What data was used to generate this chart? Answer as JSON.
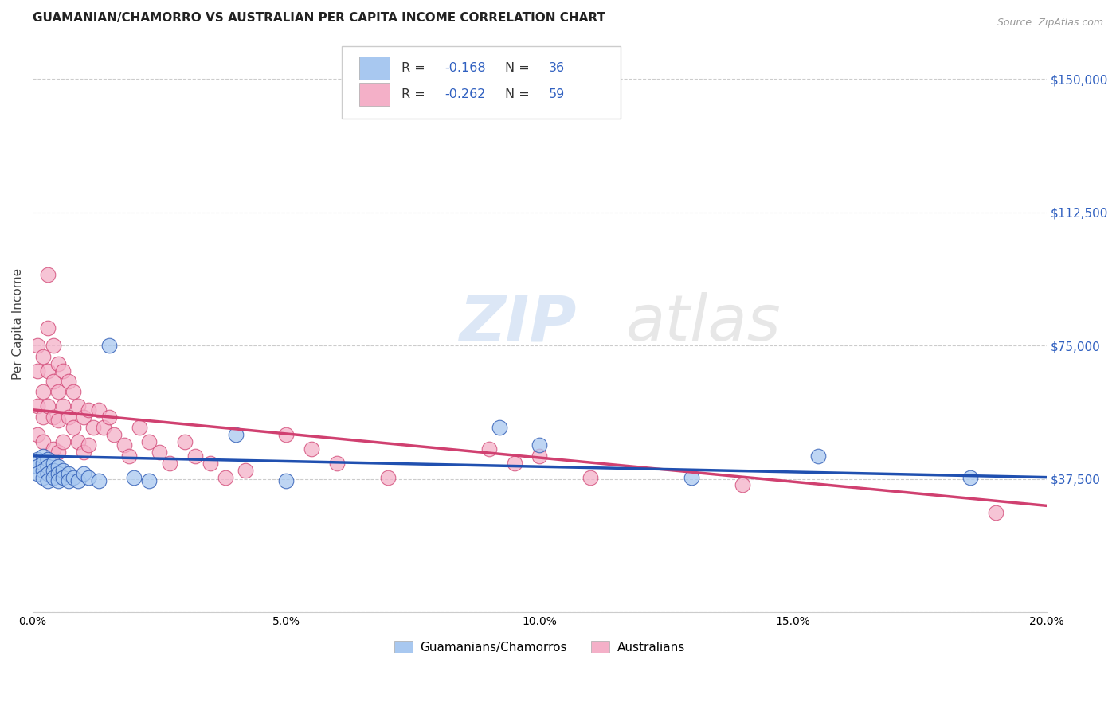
{
  "title": "GUAMANIAN/CHAMORRO VS AUSTRALIAN PER CAPITA INCOME CORRELATION CHART",
  "source": "Source: ZipAtlas.com",
  "ylabel": "Per Capita Income",
  "watermark": "ZIPatlas",
  "yticks": [
    0,
    37500,
    75000,
    112500,
    150000
  ],
  "ytick_labels": [
    "",
    "$37,500",
    "$75,000",
    "$112,500",
    "$150,000"
  ],
  "xlim": [
    0.0,
    0.2
  ],
  "ylim": [
    15000,
    162500
  ],
  "blue_R": "-0.168",
  "blue_N": "36",
  "pink_R": "-0.262",
  "pink_N": "59",
  "legend_label_blue": "Guamanians/Chamorros",
  "legend_label_pink": "Australians",
  "blue_color": "#a8c8f0",
  "pink_color": "#f4b0c8",
  "blue_line_color": "#2050b0",
  "pink_line_color": "#d04070",
  "background_color": "#ffffff",
  "grid_color": "#cccccc",
  "title_fontsize": 11,
  "axis_label_fontsize": 10,
  "tick_fontsize": 10,
  "source_fontsize": 9,
  "blue_scatter_x": [
    0.001,
    0.001,
    0.001,
    0.002,
    0.002,
    0.002,
    0.002,
    0.003,
    0.003,
    0.003,
    0.003,
    0.004,
    0.004,
    0.004,
    0.005,
    0.005,
    0.005,
    0.006,
    0.006,
    0.007,
    0.007,
    0.008,
    0.009,
    0.01,
    0.011,
    0.013,
    0.015,
    0.02,
    0.023,
    0.04,
    0.05,
    0.092,
    0.1,
    0.13,
    0.155,
    0.185
  ],
  "blue_scatter_y": [
    43000,
    41000,
    39000,
    44000,
    42000,
    40000,
    38000,
    43000,
    41000,
    39000,
    37000,
    42000,
    40000,
    38000,
    41000,
    39000,
    37000,
    40000,
    38000,
    39000,
    37000,
    38000,
    37000,
    39000,
    38000,
    37000,
    75000,
    38000,
    37000,
    50000,
    37000,
    52000,
    47000,
    38000,
    44000,
    38000
  ],
  "pink_scatter_x": [
    0.001,
    0.001,
    0.001,
    0.001,
    0.002,
    0.002,
    0.002,
    0.002,
    0.003,
    0.003,
    0.003,
    0.003,
    0.004,
    0.004,
    0.004,
    0.004,
    0.005,
    0.005,
    0.005,
    0.005,
    0.006,
    0.006,
    0.006,
    0.007,
    0.007,
    0.008,
    0.008,
    0.009,
    0.009,
    0.01,
    0.01,
    0.011,
    0.011,
    0.012,
    0.013,
    0.014,
    0.015,
    0.016,
    0.018,
    0.019,
    0.021,
    0.023,
    0.025,
    0.027,
    0.03,
    0.032,
    0.035,
    0.038,
    0.042,
    0.05,
    0.055,
    0.06,
    0.07,
    0.09,
    0.095,
    0.1,
    0.11,
    0.14,
    0.19
  ],
  "pink_scatter_y": [
    75000,
    68000,
    58000,
    50000,
    72000,
    62000,
    55000,
    48000,
    95000,
    80000,
    68000,
    58000,
    75000,
    65000,
    55000,
    46000,
    70000,
    62000,
    54000,
    45000,
    68000,
    58000,
    48000,
    65000,
    55000,
    62000,
    52000,
    58000,
    48000,
    55000,
    45000,
    57000,
    47000,
    52000,
    57000,
    52000,
    55000,
    50000,
    47000,
    44000,
    52000,
    48000,
    45000,
    42000,
    48000,
    44000,
    42000,
    38000,
    40000,
    50000,
    46000,
    42000,
    38000,
    46000,
    42000,
    44000,
    38000,
    36000,
    28000
  ]
}
